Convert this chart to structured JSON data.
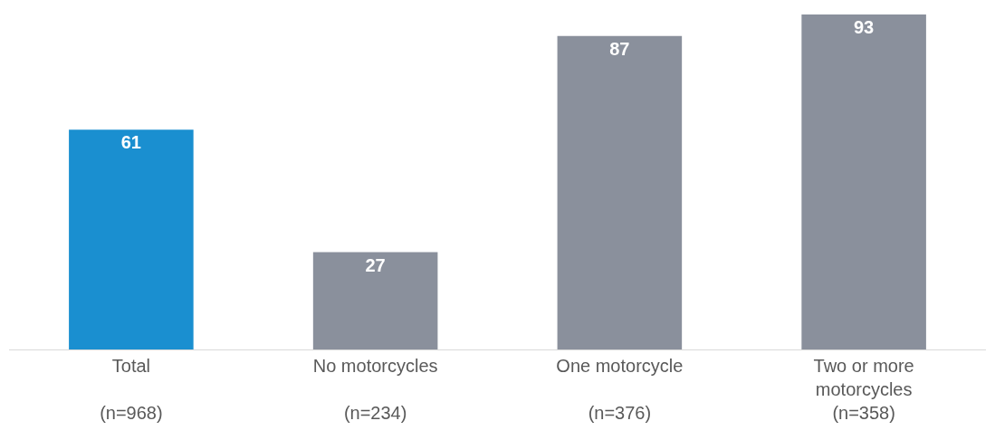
{
  "chart_data": {
    "type": "bar",
    "categories": [
      "Total\n\n(n=968)",
      "No motorcycles\n\n(n=234)",
      "One motorcycle\n\n(n=376)",
      "Two or more\nmotorcycles\n(n=358)"
    ],
    "values": [
      61,
      27,
      87,
      93
    ],
    "colors": [
      "#1a8fd0",
      "#8a909c",
      "#8a909c",
      "#8a909c"
    ],
    "ylim": [
      0,
      97
    ],
    "data_labels": true
  }
}
